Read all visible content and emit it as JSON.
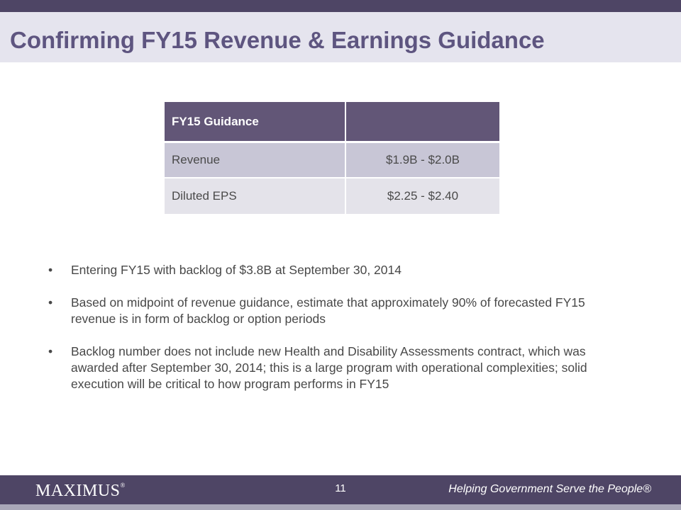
{
  "title": "Confirming FY15 Revenue & Earnings Guidance",
  "table": {
    "headers": [
      "FY15 Guidance",
      ""
    ],
    "rows": [
      [
        "Revenue",
        "$1.9B - $2.0B"
      ],
      [
        "Diluted EPS",
        "$2.25 - $2.40"
      ]
    ]
  },
  "bullet_symbol": "•",
  "bullets": [
    "Entering FY15 with backlog of $3.8B at September 30, 2014",
    "Based on midpoint of revenue guidance, estimate that approximately 90% of forecasted FY15 revenue is in form of backlog or option periods",
    "Backlog number does not include new Health and Disability Assessments contract, which was awarded after September 30, 2014; this is a large program with operational complexities; solid execution will be critical to how program performs in FY15"
  ],
  "footer": {
    "logo": "MAXIMUS",
    "logo_mark": "®",
    "page_number": "11",
    "tagline": "Helping Government Serve the People®"
  },
  "colors": {
    "bar": "#4e4565",
    "title_band": "#e5e4ee",
    "title_text": "#5e5580",
    "table_header": "#625677",
    "row_a": "#c8c6d6",
    "row_b": "#e4e3ea"
  }
}
